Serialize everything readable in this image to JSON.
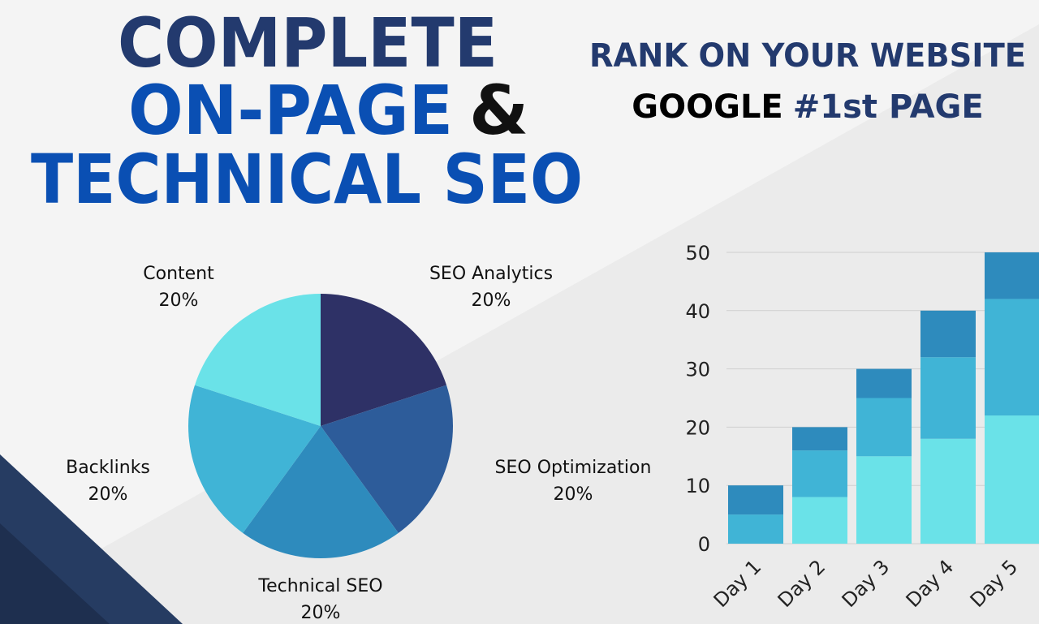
{
  "header": {
    "title": {
      "line1": "COMPLETE",
      "line2a": "ON-PAGE",
      "line2b": "&",
      "line3": "TECHNICAL SEO"
    },
    "tagline": {
      "line1": "RANK ON YOUR WEBSITE",
      "line2a": "GOOGLE",
      "line2b": "#1st PAGE"
    }
  },
  "chart_data": [
    {
      "type": "pie",
      "categories": [
        "SEO Analytics",
        "SEO Optimization",
        "Technical SEO",
        "Backlinks",
        "Content"
      ],
      "values": [
        20,
        20,
        20,
        20,
        20
      ],
      "value_labels": [
        "20%",
        "20%",
        "20%",
        "20%",
        "20%"
      ],
      "colors": [
        "#2e3166",
        "#2d5c9a",
        "#2e8bbd",
        "#40b4d6",
        "#6ae2e8"
      ]
    },
    {
      "type": "bar",
      "stacked": true,
      "categories": [
        "Day 1",
        "Day 2",
        "Day 3",
        "Day 4",
        "Day 5"
      ],
      "series": [
        {
          "color": "#6ae2e8",
          "values": [
            0,
            8,
            15,
            18,
            22
          ]
        },
        {
          "color": "#40b4d6",
          "values": [
            5,
            8,
            10,
            14,
            20
          ]
        },
        {
          "color": "#2e8bbd",
          "values": [
            5,
            4,
            5,
            8,
            8
          ]
        }
      ],
      "ylim": [
        0,
        50
      ],
      "yticks": [
        0,
        10,
        20,
        30,
        40,
        50
      ],
      "grid": true
    }
  ]
}
